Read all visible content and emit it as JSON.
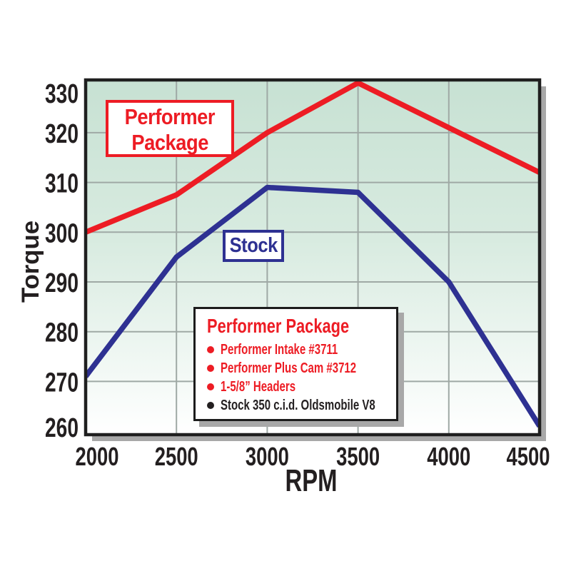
{
  "colors": {
    "red": "#ed1c24",
    "blue": "#2e3192",
    "black_text": "#231f20",
    "grid": "#9fa9a5",
    "border": "#1f1f1f",
    "shadow": "#a8a8a8",
    "plot_bg_top": "#c7e1d3",
    "plot_bg_mid": "#d8ebe0",
    "plot_bg_bottom": "#ffffff"
  },
  "chart_data": {
    "type": "line",
    "title": "",
    "xlabel": "RPM",
    "ylabel": "Torque",
    "x": [
      2000,
      2500,
      3000,
      3500,
      4000,
      4500
    ],
    "xticks": [
      2000,
      2500,
      3000,
      3500,
      4000,
      4500
    ],
    "yticks": [
      260,
      270,
      280,
      290,
      300,
      310,
      320,
      330
    ],
    "xlim": [
      2000,
      4500
    ],
    "ylim": [
      259.3,
      330.6
    ],
    "grid": true,
    "series": [
      {
        "name": "Performer Package",
        "color": "red",
        "values": [
          300,
          307.5,
          320,
          330,
          321,
          312
        ]
      },
      {
        "name": "Stock",
        "color": "blue",
        "values": [
          271,
          295,
          309,
          308,
          290,
          261
        ]
      }
    ]
  },
  "annotations": {
    "performer_label": {
      "line1": "Performer",
      "line2": "Package"
    },
    "stock_label": {
      "text": "Stock"
    }
  },
  "legend": {
    "title": "Performer Package",
    "items": [
      {
        "text": "Performer Intake #3711",
        "color": "red"
      },
      {
        "text": "Performer Plus Cam #3712",
        "color": "red"
      },
      {
        "text": "1-5/8” Headers",
        "color": "red"
      },
      {
        "text": "Stock 350 c.i.d. Oldsmobile V8",
        "color": "black"
      }
    ]
  }
}
